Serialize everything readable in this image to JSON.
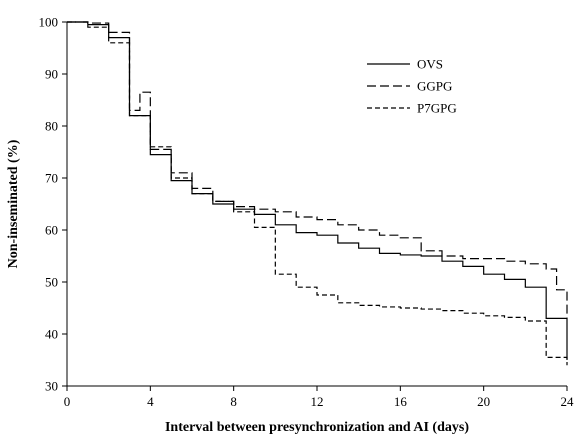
{
  "chart_data": {
    "type": "line",
    "step": true,
    "xlabel": "Interval between presynchronization and AI (days)",
    "ylabel": "Non-inseminated (%)",
    "xlim": [
      0,
      24
    ],
    "ylim": [
      30,
      100
    ],
    "xticks": [
      0,
      4,
      8,
      12,
      16,
      20,
      24
    ],
    "yticks": [
      30,
      40,
      50,
      60,
      70,
      80,
      90,
      100
    ],
    "grid": false,
    "legend_position": "top-right",
    "series": [
      {
        "name": "OVS",
        "dash": "solid",
        "x": [
          0,
          1,
          2,
          3,
          4,
          5,
          6,
          7,
          8,
          9,
          10,
          11,
          12,
          13,
          14,
          15,
          16,
          17,
          18,
          19,
          20,
          21,
          22,
          23,
          24
        ],
        "y": [
          100,
          99.5,
          97,
          82,
          74.5,
          69.5,
          67,
          65,
          64,
          63,
          61,
          59.5,
          59,
          57.5,
          56.5,
          55.5,
          55.2,
          55,
          54,
          53,
          51.5,
          50.5,
          49,
          43,
          35
        ]
      },
      {
        "name": "GGPG",
        "dash": "long",
        "x": [
          0,
          1,
          2,
          3,
          3.5,
          4,
          5,
          6,
          7,
          8,
          9,
          10,
          11,
          12,
          13,
          14,
          15,
          16,
          17,
          18,
          19,
          20,
          21,
          22,
          23,
          23.5,
          24
        ],
        "y": [
          100,
          99.8,
          98,
          83,
          86.5,
          75.5,
          71,
          68,
          65.5,
          64.5,
          64,
          63.5,
          62.5,
          62,
          61,
          60,
          59,
          58.5,
          56,
          55,
          54.5,
          54.5,
          54,
          53.5,
          52.5,
          48.5,
          43
        ]
      },
      {
        "name": "P7GPG",
        "dash": "short",
        "x": [
          0,
          1,
          2,
          3,
          4,
          5,
          6,
          7,
          8,
          9,
          10,
          11,
          12,
          13,
          14,
          15,
          16,
          17,
          18,
          19,
          20,
          21,
          22,
          23,
          24
        ],
        "y": [
          100,
          99,
          96,
          82,
          76,
          70,
          67,
          65.5,
          63.5,
          60.5,
          51.5,
          49,
          47.5,
          46,
          45.5,
          45.2,
          45,
          44.8,
          44.5,
          44,
          43.5,
          43.2,
          42.5,
          35.5,
          34
        ]
      }
    ]
  }
}
